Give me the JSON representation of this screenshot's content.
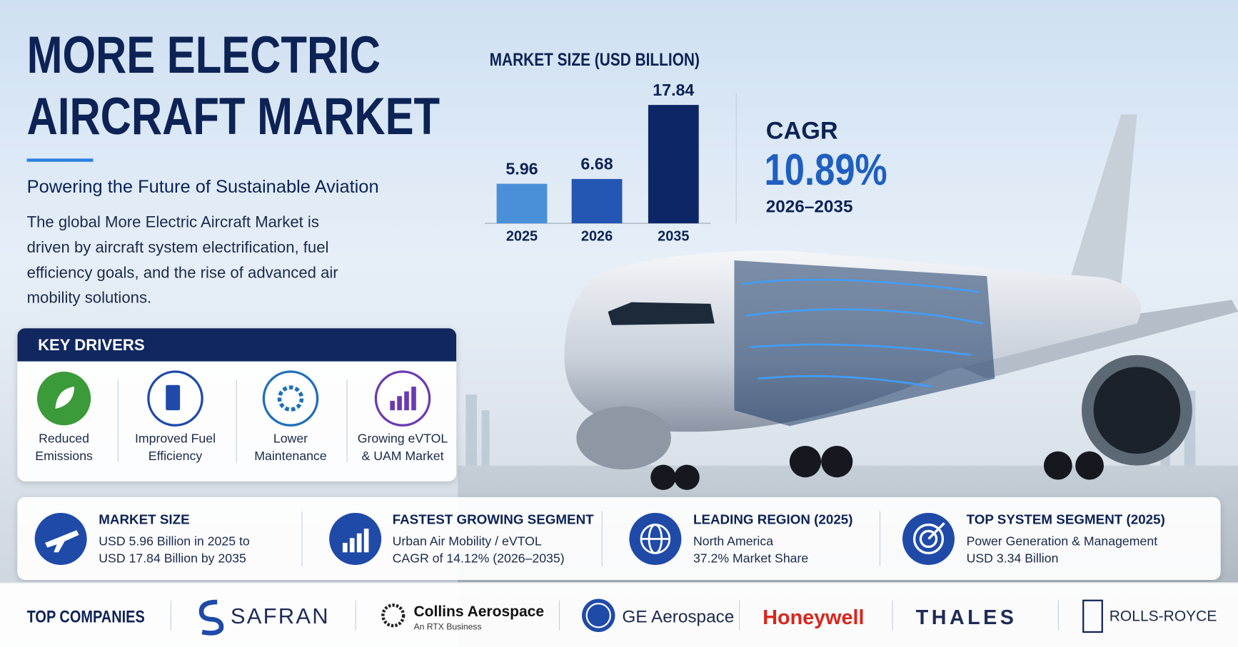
{
  "header": {
    "title_lines": [
      "MORE ELECTRIC",
      "AIRCRAFT MARKET"
    ],
    "subtitle": "Powering the Future of Sustainable Aviation",
    "description": "The global More Electric Aircraft Market is driven by aircraft system electrification, fuel efficiency goals, and the rise of advanced air mobility solutions."
  },
  "chart_data": {
    "type": "bar",
    "title": "MARKET SIZE (USD BILLION)",
    "categories": [
      "2025",
      "2026",
      "2035"
    ],
    "values": [
      5.96,
      6.68,
      17.84
    ],
    "colors": [
      "#4a90d9",
      "#2456b4",
      "#0d2766"
    ]
  },
  "cagr": {
    "label": "CAGR",
    "value": "10.89%",
    "period": "2026–2035"
  },
  "key_drivers": {
    "title": "KEY DRIVERS",
    "items": [
      "Reduced Emissions",
      "Improved Fuel Efficiency",
      "Lower Maintenance",
      "Growing eVTOL & UAM Market"
    ]
  },
  "stats": [
    {
      "title": "MARKET SIZE",
      "lines": [
        "USD 5.96 Billion in 2025 to",
        "USD 17.84 Billion by 2035"
      ]
    },
    {
      "title": "FASTEST GROWING SEGMENT",
      "lines": [
        "Urban Air Mobility / eVTOL",
        "CAGR of 14.12% (2026–2035)"
      ]
    },
    {
      "title": "LEADING REGION (2025)",
      "lines": [
        "North America",
        "37.2% Market Share"
      ]
    },
    {
      "title": "TOP SYSTEM SEGMENT (2025)",
      "lines": [
        "Power Generation & Management",
        "USD 3.34 Billion"
      ]
    }
  ],
  "companies": {
    "title": "TOP COMPANIES",
    "items": [
      {
        "name": "SAFRAN"
      },
      {
        "name": "Collins Aerospace",
        "tagline": "An RTX Business"
      },
      {
        "name": "GE Aerospace"
      },
      {
        "name": "Honeywell"
      },
      {
        "name": "THALES"
      },
      {
        "name": "ROLLS-ROYCE"
      }
    ]
  }
}
